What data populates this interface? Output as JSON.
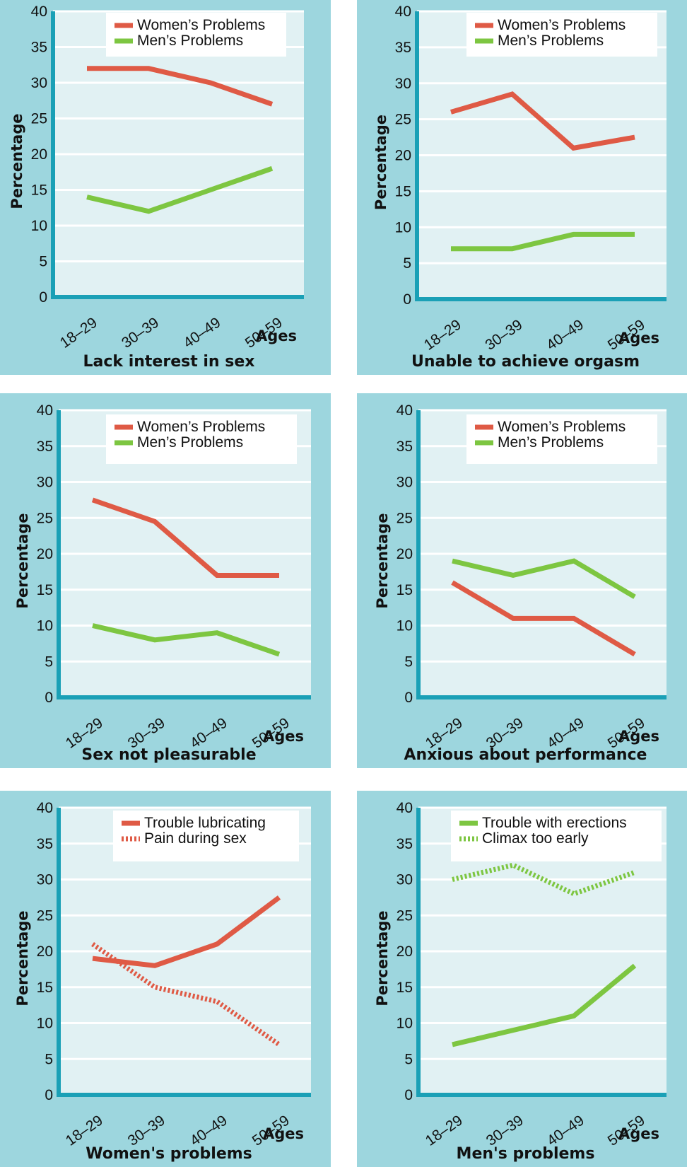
{
  "colors": {
    "panel_bg": "#9dd6de",
    "plot_bg": "#e1f1f3",
    "axis": "#1aa0b6",
    "grid": "#ffffff",
    "women": "#df5a45",
    "men": "#7dc641"
  },
  "common": {
    "ages_label": "Ages",
    "ylabel": "Percentage",
    "yticks": [
      "0",
      "5",
      "10",
      "15",
      "20",
      "25",
      "30",
      "35",
      "40"
    ]
  },
  "chart_data": [
    {
      "type": "line",
      "title": "Lack interest in sex",
      "xlabel": "Ages",
      "ylabel": "Percentage",
      "ylim": [
        0,
        40
      ],
      "categories": [
        "18–29",
        "30–39",
        "40–49",
        "50–59"
      ],
      "legend_position": "top-right",
      "series": [
        {
          "name": "Women’s Problems",
          "color": "#df5a45",
          "style": "solid",
          "values": [
            32,
            32,
            30,
            27
          ]
        },
        {
          "name": "Men’s Problems",
          "color": "#7dc641",
          "style": "solid",
          "values": [
            14,
            12,
            15,
            18
          ]
        }
      ]
    },
    {
      "type": "line",
      "title": "Unable to achieve orgasm",
      "xlabel": "Ages",
      "ylabel": "Percentage",
      "ylim": [
        0,
        40
      ],
      "categories": [
        "18–29",
        "30–39",
        "40–49",
        "50–59"
      ],
      "legend_position": "top-right",
      "series": [
        {
          "name": "Women’s Problems",
          "color": "#df5a45",
          "style": "solid",
          "values": [
            26,
            28.5,
            21,
            22.5
          ]
        },
        {
          "name": "Men’s Problems",
          "color": "#7dc641",
          "style": "solid",
          "values": [
            7,
            7,
            9,
            9
          ]
        }
      ]
    },
    {
      "type": "line",
      "title": "Sex not pleasurable",
      "xlabel": "Ages",
      "ylabel": "Percentage",
      "ylim": [
        0,
        40
      ],
      "categories": [
        "18–29",
        "30–39",
        "40–49",
        "50–59"
      ],
      "legend_position": "top-right",
      "series": [
        {
          "name": "Women’s Problems",
          "color": "#df5a45",
          "style": "solid",
          "values": [
            27.5,
            24.5,
            17,
            17
          ]
        },
        {
          "name": "Men’s Problems",
          "color": "#7dc641",
          "style": "solid",
          "values": [
            10,
            8,
            9,
            6
          ]
        }
      ]
    },
    {
      "type": "line",
      "title": "Anxious about performance",
      "xlabel": "Ages",
      "ylabel": "Percentage",
      "ylim": [
        0,
        40
      ],
      "categories": [
        "18–29",
        "30–39",
        "40–49",
        "50–59"
      ],
      "legend_position": "top-right",
      "series": [
        {
          "name": "Women’s Problems",
          "color": "#df5a45",
          "style": "solid",
          "values": [
            16,
            11,
            11,
            6
          ]
        },
        {
          "name": "Men’s Problems",
          "color": "#7dc641",
          "style": "solid",
          "values": [
            19,
            17,
            19,
            14
          ]
        }
      ]
    },
    {
      "type": "line",
      "title": "Women's problems",
      "xlabel": "Ages",
      "ylabel": "Percentage",
      "ylim": [
        0,
        40
      ],
      "categories": [
        "18–29",
        "30–39",
        "40–49",
        "50–59"
      ],
      "legend_position": "top-right",
      "series": [
        {
          "name": "Trouble lubricating",
          "color": "#df5a45",
          "style": "solid",
          "values": [
            19,
            18,
            21,
            27.5
          ]
        },
        {
          "name": "Pain during sex",
          "color": "#df5a45",
          "style": "dotted",
          "values": [
            21,
            15,
            13,
            7
          ]
        }
      ]
    },
    {
      "type": "line",
      "title": "Men's problems",
      "xlabel": "Ages",
      "ylabel": "Percentage",
      "ylim": [
        0,
        40
      ],
      "categories": [
        "18–29",
        "30–39",
        "40–49",
        "50–59"
      ],
      "legend_position": "top-right",
      "series": [
        {
          "name": "Trouble with erections",
          "color": "#7dc641",
          "style": "solid",
          "values": [
            7,
            9,
            11,
            18
          ]
        },
        {
          "name": "Climax too early",
          "color": "#7dc641",
          "style": "dotted",
          "values": [
            30,
            32,
            28,
            31
          ]
        }
      ]
    }
  ]
}
